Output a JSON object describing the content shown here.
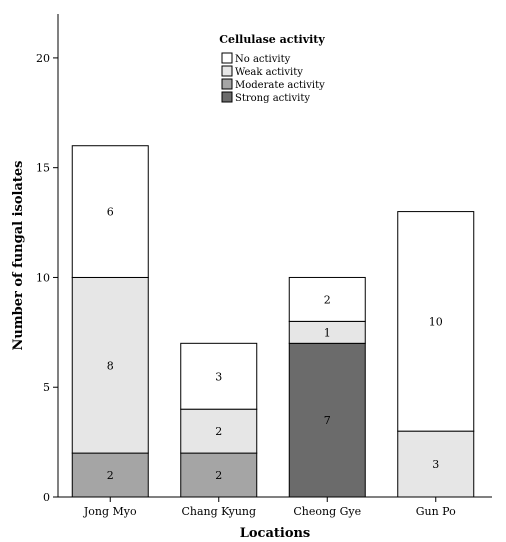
{
  "chart_data": {
    "type": "bar",
    "stacked": true,
    "title": "",
    "xlabel": "Locations",
    "ylabel": "Number of fungal isolates",
    "ylim": [
      0,
      22
    ],
    "yticks": [
      0,
      5,
      10,
      15,
      20
    ],
    "grid": false,
    "legend": {
      "title": "Cellulase activity",
      "placement": "top-center"
    },
    "categories": [
      "Jong Myo",
      "Chang Kyung",
      "Cheong Gye",
      "Gun Po"
    ],
    "series": [
      {
        "name": "Strong activity",
        "color": "#6b6b6b",
        "values": [
          0,
          0,
          7,
          0
        ]
      },
      {
        "name": "Moderate activity",
        "color": "#a5a5a5",
        "values": [
          2,
          2,
          0,
          0
        ]
      },
      {
        "name": "Weak activity",
        "color": "#e6e6e6",
        "values": [
          8,
          2,
          1,
          3
        ]
      },
      {
        "name": "No activity",
        "color": "#ffffff",
        "values": [
          6,
          3,
          2,
          10
        ]
      }
    ],
    "legend_order": [
      "No activity",
      "Weak activity",
      "Moderate activity",
      "Strong activity"
    ]
  }
}
